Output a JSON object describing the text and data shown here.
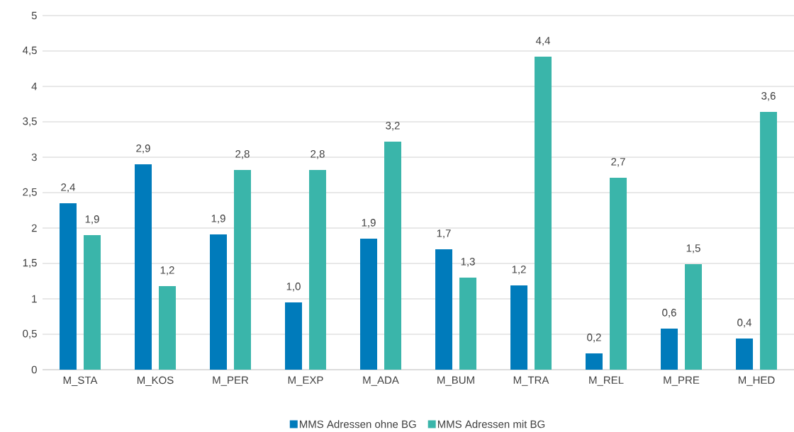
{
  "chart_data": {
    "type": "bar",
    "categories": [
      "M_STA",
      "M_KOS",
      "M_PER",
      "M_EXP",
      "M_ADA",
      "M_BUM",
      "M_TRA",
      "M_REL",
      "M_PRE",
      "M_HED"
    ],
    "series": [
      {
        "name": "MMS Adressen ohne BG",
        "color": "#007bbb",
        "values": [
          2.35,
          2.9,
          1.91,
          0.95,
          1.85,
          1.7,
          1.19,
          0.23,
          0.58,
          0.44
        ],
        "value_labels": [
          "2,4",
          "2,9",
          "1,9",
          "1,0",
          "1,9",
          "1,7",
          "1,2",
          "0,2",
          "0,6",
          "0,4"
        ]
      },
      {
        "name": "MMS Adressen mit BG",
        "color": "#3ab5aa",
        "values": [
          1.9,
          1.18,
          2.82,
          2.82,
          3.22,
          1.3,
          4.42,
          2.71,
          1.49,
          3.64
        ],
        "value_labels": [
          "1,9",
          "1,2",
          "2,8",
          "2,8",
          "3,2",
          "1,3",
          "4,4",
          "2,7",
          "1,5",
          "3,6"
        ]
      }
    ],
    "ylim": [
      0,
      5
    ],
    "yticks": [
      0,
      {
        "value": 0.5,
        "label": "0,5"
      },
      1,
      {
        "value": 1.5,
        "label": "1,5"
      },
      2,
      {
        "value": 2.5,
        "label": "2,5"
      },
      3,
      {
        "value": 3.5,
        "label": "3,5"
      },
      4,
      {
        "value": 4.5,
        "label": "4,5"
      },
      5
    ],
    "grid": "y",
    "legend": "bottom"
  }
}
